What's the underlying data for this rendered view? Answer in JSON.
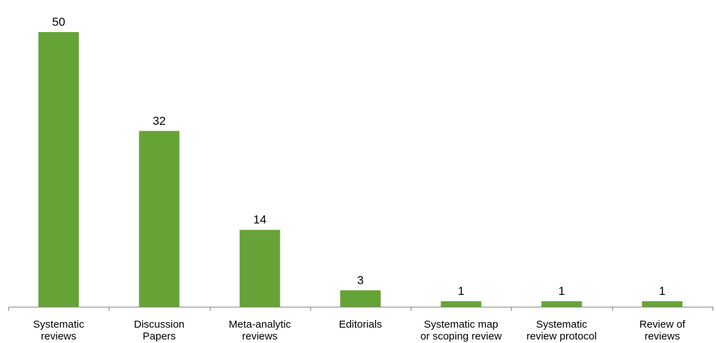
{
  "chart_data": {
    "type": "bar",
    "categories": [
      [
        "Systematic",
        "reviews"
      ],
      [
        "Discussion",
        "Papers"
      ],
      [
        "Meta-analytic",
        "reviews"
      ],
      [
        "Editorials"
      ],
      [
        "Systematic map",
        "or scoping review"
      ],
      [
        "Systematic",
        "review protocol"
      ],
      [
        "Review of",
        "reviews"
      ]
    ],
    "values": [
      50,
      32,
      14,
      3,
      1,
      1,
      1
    ],
    "value_labels": [
      "50",
      "32",
      "14",
      "3",
      "1",
      "1",
      "1"
    ],
    "ylim": [
      0,
      50
    ],
    "title": "",
    "xlabel": "",
    "ylabel": "",
    "grid": false,
    "bar_color": "#66a337",
    "axis_color": "#868686"
  }
}
